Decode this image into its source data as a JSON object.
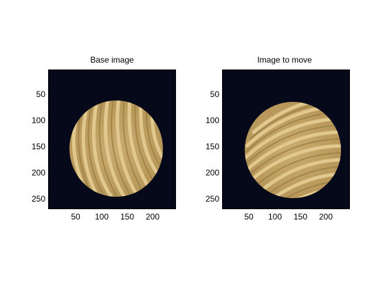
{
  "panels": [
    {
      "title": "Base image",
      "y_ticks": [
        "50",
        "100",
        "150",
        "200",
        "250"
      ],
      "x_ticks": [
        "50",
        "100",
        "150",
        "200"
      ],
      "image": "wood-disc-base"
    },
    {
      "title": "Image to move",
      "y_ticks": [
        "50",
        "100",
        "150",
        "200",
        "250"
      ],
      "x_ticks": [
        "50",
        "100",
        "150",
        "200"
      ],
      "image": "wood-disc-rotated"
    }
  ],
  "colors": {
    "background": "#06091a",
    "wood_light": "#d6bd82",
    "wood_dark": "#9c7f45"
  }
}
